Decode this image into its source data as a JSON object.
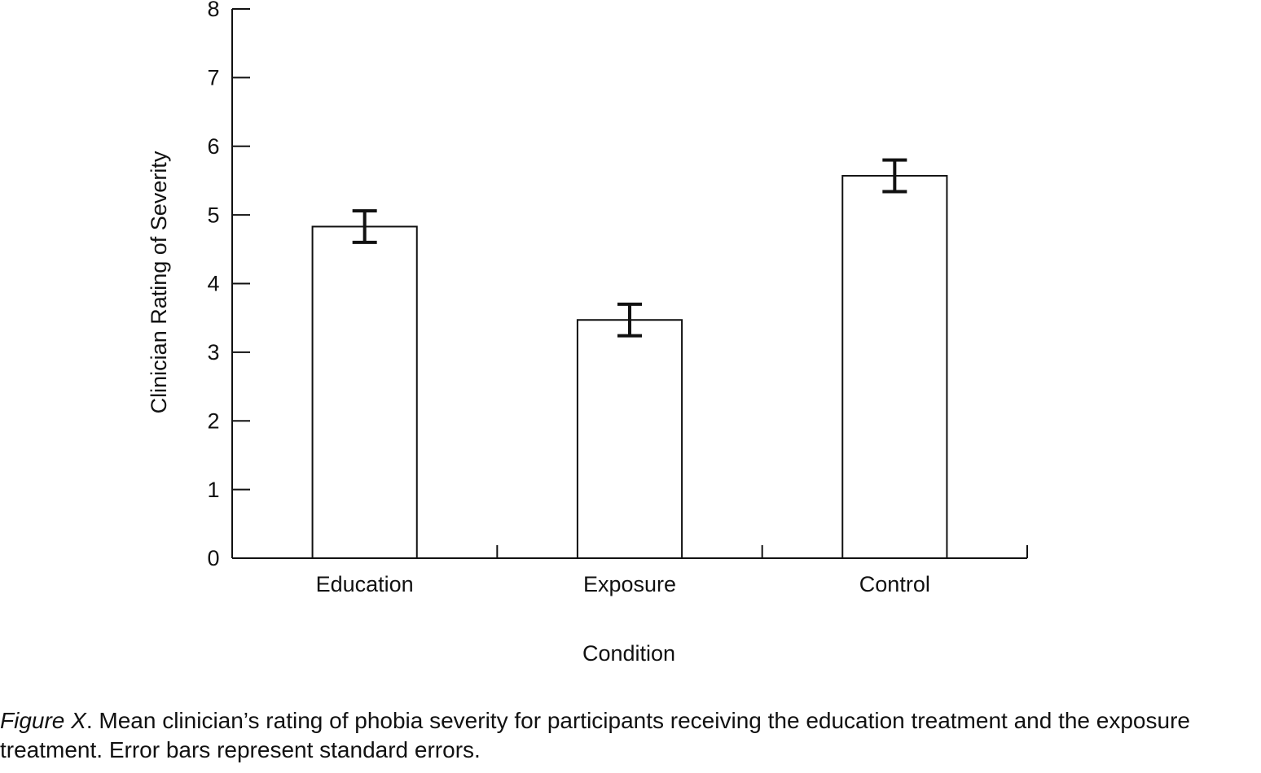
{
  "chart_data": {
    "type": "bar",
    "categories": [
      "Education",
      "Exposure",
      "Control"
    ],
    "values": [
      4.83,
      3.47,
      5.57
    ],
    "errors": [
      0.23,
      0.23,
      0.23
    ],
    "color": "#ffffff",
    "ylim": [
      0,
      8
    ],
    "yticks": [
      0,
      1,
      2,
      3,
      4,
      5,
      6,
      7,
      8
    ],
    "ylabel": "Clinician Rating of Severity",
    "xlabel": "Condition",
    "grid": false
  },
  "caption": {
    "label": "Figure X",
    "text": ". Mean clinician’s rating of phobia severity for participants receiving the education treatment and the exposure treatment. Error bars represent standard errors."
  }
}
